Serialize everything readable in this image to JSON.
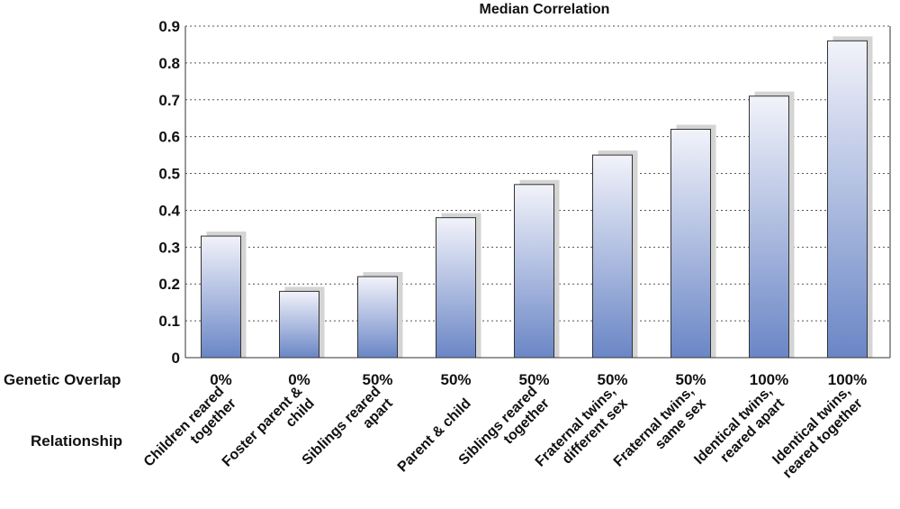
{
  "chart_data": {
    "type": "bar",
    "title": "Median Correlation",
    "ylim": [
      0,
      0.9
    ],
    "yticks": [
      "0",
      "0.1",
      "0.2",
      "0.3",
      "0.4",
      "0.5",
      "0.6",
      "0.7",
      "0.8",
      "0.9"
    ],
    "grid": true,
    "row_labels": {
      "overlap": "Genetic Overlap",
      "relationship": "Relationship"
    },
    "categories": [
      [
        "Children reared",
        "together"
      ],
      [
        "Foster parent &",
        "child"
      ],
      [
        "Siblings reared",
        "apart"
      ],
      [
        "Parent & child"
      ],
      [
        "Siblings reared",
        "together"
      ],
      [
        "Fraternal twins,",
        "different sex"
      ],
      [
        "Fraternal twins,",
        "same sex"
      ],
      [
        "Identical twins,",
        "reared apart"
      ],
      [
        "Identical twins,",
        "reared together"
      ]
    ],
    "genetic_overlap": [
      "0%",
      "0%",
      "50%",
      "50%",
      "50%",
      "50%",
      "50%",
      "100%",
      "100%"
    ],
    "values": [
      0.33,
      0.18,
      0.22,
      0.38,
      0.47,
      0.55,
      0.62,
      0.71,
      0.86
    ],
    "colors": {
      "bar_top": "#f2f3fa",
      "bar_bottom": "#6a86c6",
      "shadow": "#d4d4d4",
      "grid": "#555555",
      "outline": "#333333"
    }
  }
}
